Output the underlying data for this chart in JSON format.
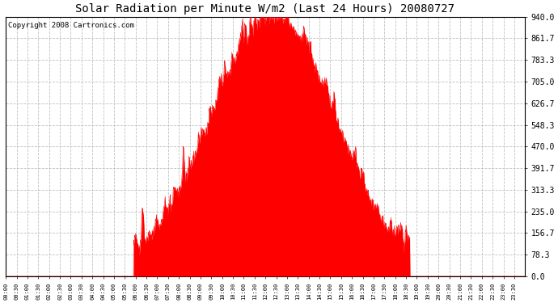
{
  "title": "Solar Radiation per Minute W/m2 (Last 24 Hours) 20080727",
  "copyright": "Copyright 2008 Cartronics.com",
  "bar_color": "#ff0000",
  "dashed_line_color": "#ff0000",
  "grid_color": "#c0c0c0",
  "background_color": "#ffffff",
  "plot_bg_color": "#ffffff",
  "ylim": [
    0.0,
    940.0
  ],
  "yticks": [
    0.0,
    78.3,
    156.7,
    235.0,
    313.3,
    391.7,
    470.0,
    548.3,
    626.7,
    705.0,
    783.3,
    861.7,
    940.0
  ],
  "title_fontsize": 10,
  "copyright_fontsize": 6.5,
  "rise_minute": 355,
  "set_minute": 1120,
  "peak_minute": 745,
  "max_val": 940.0
}
